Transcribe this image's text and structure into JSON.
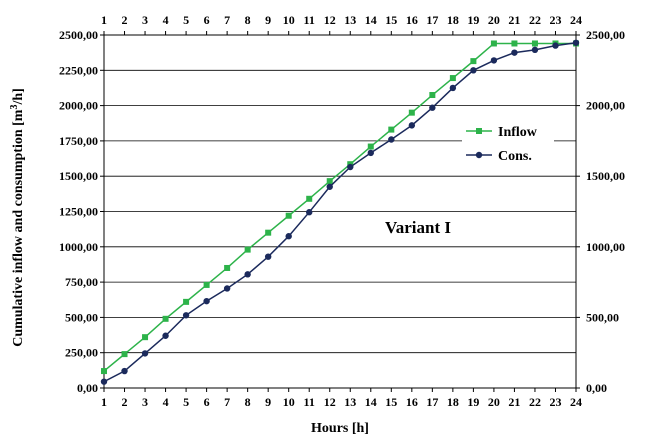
{
  "chart_data": {
    "type": "line",
    "x": [
      1,
      2,
      3,
      4,
      5,
      6,
      7,
      8,
      9,
      10,
      11,
      12,
      13,
      14,
      15,
      16,
      17,
      18,
      19,
      20,
      21,
      22,
      23,
      24
    ],
    "x_ticks": [
      "1",
      "2",
      "3",
      "4",
      "5",
      "6",
      "7",
      "8",
      "9",
      "10",
      "11",
      "12",
      "13",
      "14",
      "15",
      "16",
      "17",
      "18",
      "19",
      "20",
      "21",
      "22",
      "23",
      "24"
    ],
    "ylim": [
      0,
      2500
    ],
    "y_ticks_left": [
      "0,00",
      "250,00",
      "500,00",
      "750,00",
      "1000,00",
      "1250,00",
      "1500,00",
      "1750,00",
      "2000,00",
      "2250,00",
      "2500,00"
    ],
    "y_ticks_right": [
      "0,00",
      "500,00",
      "1000,00",
      "1500,00",
      "2000,00",
      "2500,00"
    ],
    "xlabel": "Hours [h]",
    "ylabel": "Cumulative inflow and consumption [m³/h]",
    "annotation": "Variant I",
    "grid": "horizontal",
    "legend_position": "right",
    "series": [
      {
        "name": "Inflow",
        "color": "#2db34a",
        "marker": "square",
        "values": [
          120,
          240,
          360,
          490,
          610,
          730,
          850,
          980,
          1100,
          1220,
          1340,
          1465,
          1585,
          1710,
          1830,
          1950,
          2075,
          2195,
          2315,
          2440,
          2440,
          2440,
          2440,
          2440
        ]
      },
      {
        "name": "Cons.",
        "color": "#1b2a5c",
        "marker": "circle",
        "values": [
          45,
          120,
          245,
          370,
          515,
          615,
          705,
          805,
          930,
          1075,
          1245,
          1425,
          1565,
          1665,
          1760,
          1860,
          1985,
          2125,
          2250,
          2320,
          2375,
          2395,
          2425,
          2445
        ]
      }
    ]
  }
}
